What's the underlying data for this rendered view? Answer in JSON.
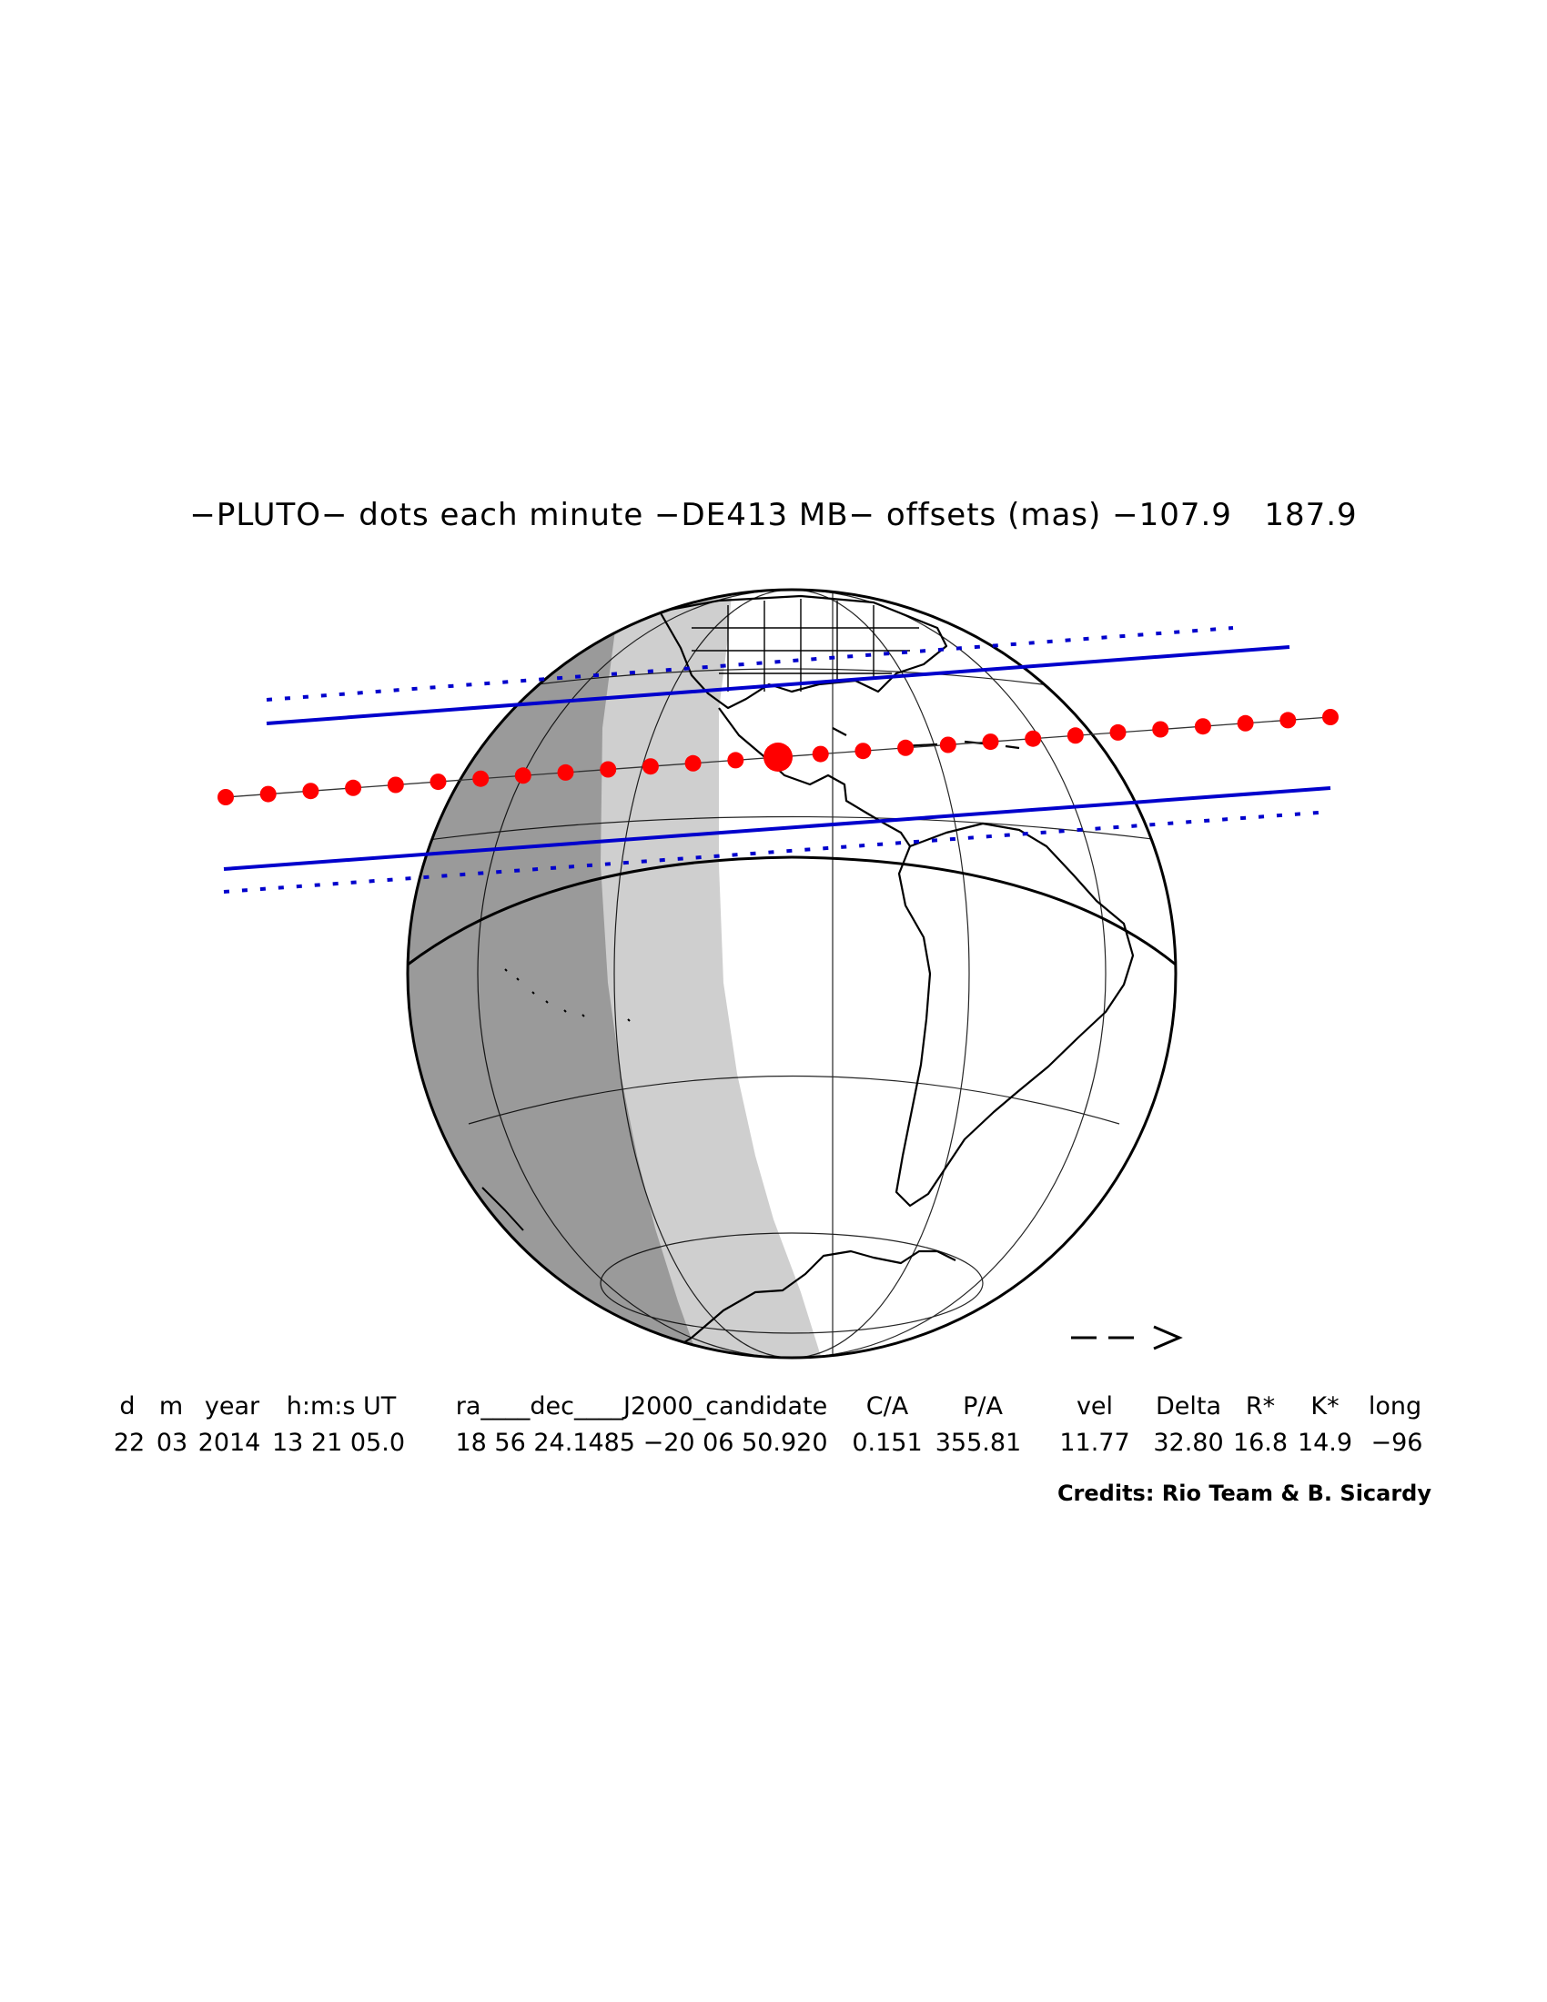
{
  "title": "−PLUTO− dots each minute −DE413 MB− offsets (mas) −107.9   187.9",
  "direction_arrow": "— — >",
  "table": {
    "headers": [
      "d",
      "m",
      "year",
      "h:m:s UT",
      "ra____dec____J2000_candidate",
      "C/A",
      "P/A",
      "vel",
      "Delta",
      "R*",
      "K*",
      "long"
    ],
    "values": [
      "22",
      "03",
      "2014",
      "13 21 05.0",
      "18 56 24.1485 −20 06 50.920",
      "0.151",
      "355.81",
      "11.77",
      "32.80",
      "16.8",
      "14.9",
      "−96"
    ]
  },
  "credits": "Credits: Rio Team & B. Sicardy",
  "colors": {
    "path_dots": "#ff0000",
    "shadow_limits": "#0000cc",
    "night": "#9a9a9a",
    "twilight": "#cfcfcf",
    "day": "#ffffff",
    "outline": "#000000"
  },
  "icons": {
    "direction": "arrow-right-icon"
  }
}
